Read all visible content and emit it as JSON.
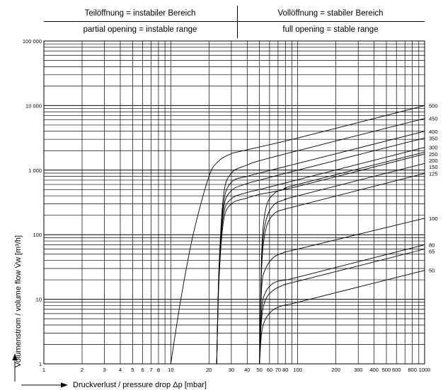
{
  "header": {
    "left_de": "Teilöffnung = instabiler Bereich",
    "left_en": "partial opening = instable range",
    "right_de": "Vollöffnung = stabiler Bereich",
    "right_en": "full opening = stable range"
  },
  "chart_data": {
    "type": "line",
    "xlabel": "Druckverlust / pressure drop Δp [mbar]",
    "ylabel": "Volumenstrom / volume flow V̇w [m³/h]",
    "xscale": "log",
    "yscale": "log",
    "xlim": [
      1,
      1000
    ],
    "ylim": [
      1,
      100000
    ],
    "grid": true,
    "x_tick_labels": [
      "1",
      "2",
      "3",
      "4",
      "5",
      "6",
      "7",
      "8",
      "10",
      "20",
      "30",
      "40",
      "50",
      "60",
      "70",
      "80",
      "100",
      "200",
      "300",
      "400",
      "500",
      "600",
      "800",
      "1000"
    ],
    "y_tick_labels": [
      "1",
      "10",
      "100",
      "1 000",
      "10 000",
      "100 000"
    ],
    "series": [
      {
        "name": "500",
        "points": [
          [
            10,
            1
          ],
          [
            12,
            10
          ],
          [
            15,
            100
          ],
          [
            20,
            800
          ],
          [
            24,
            1400
          ],
          [
            30,
            1800
          ],
          [
            35,
            1950
          ],
          [
            100,
            3150
          ],
          [
            1000,
            10000
          ]
        ]
      },
      {
        "name": "450",
        "points": [
          [
            23,
            1
          ],
          [
            24,
            30
          ],
          [
            26,
            400
          ],
          [
            30,
            900
          ],
          [
            40,
            1200
          ],
          [
            50,
            1400
          ],
          [
            100,
            2000
          ],
          [
            1000,
            6300
          ]
        ]
      },
      {
        "name": "400",
        "points": [
          [
            23,
            1
          ],
          [
            24,
            30
          ],
          [
            26,
            300
          ],
          [
            30,
            650
          ],
          [
            40,
            800
          ],
          [
            50,
            900
          ],
          [
            100,
            1270
          ],
          [
            1000,
            4000
          ]
        ]
      },
      {
        "name": "350",
        "points": [
          [
            23,
            1
          ],
          [
            24,
            30
          ],
          [
            26,
            250
          ],
          [
            30,
            480
          ],
          [
            40,
            620
          ],
          [
            50,
            700
          ],
          [
            100,
            1000
          ],
          [
            1000,
            3150
          ]
        ]
      },
      {
        "name": "300",
        "points": [
          [
            23,
            1
          ],
          [
            24,
            25
          ],
          [
            26,
            200
          ],
          [
            30,
            360
          ],
          [
            40,
            450
          ],
          [
            50,
            500
          ],
          [
            100,
            710
          ],
          [
            1000,
            2250
          ]
        ]
      },
      {
        "name": "250",
        "points": [
          [
            23,
            1
          ],
          [
            24,
            20
          ],
          [
            26,
            160
          ],
          [
            30,
            300
          ],
          [
            40,
            370
          ],
          [
            50,
            420
          ],
          [
            100,
            560
          ],
          [
            1000,
            1780
          ]
        ]
      },
      {
        "name": "200",
        "points": [
          [
            50,
            1
          ],
          [
            52,
            50
          ],
          [
            56,
            250
          ],
          [
            65,
            430
          ],
          [
            80,
            520
          ],
          [
            100,
            600
          ],
          [
            1000,
            1900
          ]
        ]
      },
      {
        "name": "150",
        "points": [
          [
            50,
            1
          ],
          [
            52,
            40
          ],
          [
            56,
            160
          ],
          [
            65,
            290
          ],
          [
            80,
            350
          ],
          [
            100,
            400
          ],
          [
            1000,
            1270
          ]
        ]
      },
      {
        "name": "125",
        "points": [
          [
            50,
            1
          ],
          [
            52,
            30
          ],
          [
            56,
            120
          ],
          [
            65,
            210
          ],
          [
            80,
            250
          ],
          [
            100,
            280
          ],
          [
            1000,
            890
          ]
        ]
      },
      {
        "name": "100",
        "points": [
          [
            50,
            1
          ],
          [
            52,
            15
          ],
          [
            56,
            30
          ],
          [
            65,
            45
          ],
          [
            80,
            54
          ],
          [
            100,
            60
          ],
          [
            1000,
            180
          ]
        ]
      },
      {
        "name": "80",
        "points": [
          [
            50,
            1
          ],
          [
            52,
            7
          ],
          [
            56,
            13
          ],
          [
            65,
            18
          ],
          [
            80,
            20
          ],
          [
            100,
            22
          ],
          [
            1000,
            70
          ]
        ]
      },
      {
        "name": "65",
        "points": [
          [
            50,
            1
          ],
          [
            52,
            5
          ],
          [
            56,
            10
          ],
          [
            65,
            14
          ],
          [
            80,
            17
          ],
          [
            100,
            19
          ],
          [
            1000,
            60
          ]
        ]
      },
      {
        "name": "50",
        "points": [
          [
            50,
            1
          ],
          [
            52,
            3
          ],
          [
            56,
            5
          ],
          [
            65,
            7
          ],
          [
            80,
            8.2
          ],
          [
            100,
            9
          ],
          [
            1000,
            28
          ]
        ]
      }
    ]
  }
}
